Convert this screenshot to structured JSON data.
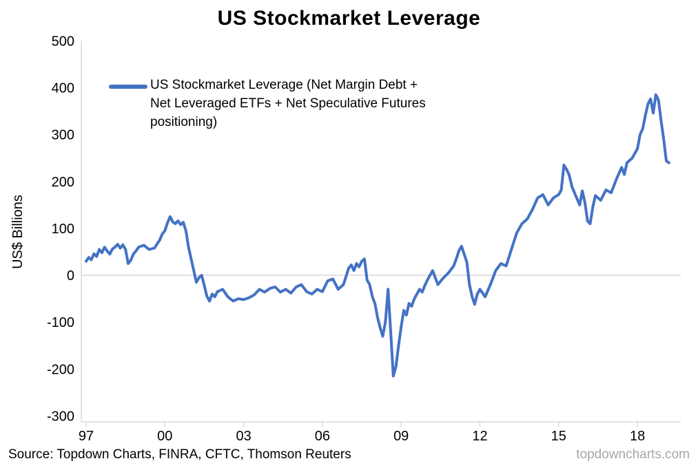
{
  "title": "US Stockmarket Leverage",
  "y_axis_title": "US$ Billions",
  "legend_label": "US Stockmarket Leverage (Net Margin Debt + Net Leveraged ETFs + Net Speculative Futures positioning)",
  "source": "Source: Topdown Charts, FINRA, CFTC, Thomson Reuters",
  "watermark": "topdowncharts.com",
  "colors": {
    "line": "#4472C4",
    "axis": "#d9d9d9",
    "watermark": "#a6a6a6"
  },
  "chart_data": {
    "type": "line",
    "title": "US Stockmarket Leverage",
    "xlabel": "",
    "ylabel": "US$ Billions",
    "series_name": "US Stockmarket Leverage (Net Margin Debt + Net Leveraged ETFs + Net Speculative Futures positioning)",
    "line_color": "#4472C4",
    "ylim": [
      -300,
      500
    ],
    "xlim": [
      1997,
      2019.4
    ],
    "grid": "zero-line-only",
    "legend_position": "upper-left-inside",
    "y_ticks": [
      500,
      400,
      300,
      200,
      100,
      0,
      -100,
      -200,
      -300
    ],
    "x_ticks": [
      {
        "year": 1997,
        "label": "97"
      },
      {
        "year": 2000,
        "label": "00"
      },
      {
        "year": 2003,
        "label": "03"
      },
      {
        "year": 2006,
        "label": "06"
      },
      {
        "year": 2009,
        "label": "09"
      },
      {
        "year": 2012,
        "label": "12"
      },
      {
        "year": 2015,
        "label": "15"
      },
      {
        "year": 2018,
        "label": "18"
      }
    ],
    "points": [
      [
        1997.0,
        30
      ],
      [
        1997.1,
        38
      ],
      [
        1997.2,
        33
      ],
      [
        1997.3,
        46
      ],
      [
        1997.4,
        40
      ],
      [
        1997.5,
        55
      ],
      [
        1997.6,
        48
      ],
      [
        1997.7,
        60
      ],
      [
        1997.8,
        52
      ],
      [
        1997.9,
        45
      ],
      [
        1998.0,
        56
      ],
      [
        1998.1,
        60
      ],
      [
        1998.2,
        66
      ],
      [
        1998.3,
        58
      ],
      [
        1998.4,
        65
      ],
      [
        1998.5,
        55
      ],
      [
        1998.6,
        25
      ],
      [
        1998.7,
        32
      ],
      [
        1998.8,
        45
      ],
      [
        1998.9,
        52
      ],
      [
        1999.0,
        60
      ],
      [
        1999.2,
        64
      ],
      [
        1999.4,
        55
      ],
      [
        1999.6,
        58
      ],
      [
        1999.8,
        75
      ],
      [
        1999.9,
        88
      ],
      [
        2000.0,
        95
      ],
      [
        2000.1,
        112
      ],
      [
        2000.2,
        125
      ],
      [
        2000.3,
        114
      ],
      [
        2000.4,
        110
      ],
      [
        2000.5,
        116
      ],
      [
        2000.6,
        108
      ],
      [
        2000.7,
        113
      ],
      [
        2000.8,
        95
      ],
      [
        2000.9,
        60
      ],
      [
        2001.0,
        35
      ],
      [
        2001.1,
        10
      ],
      [
        2001.2,
        -15
      ],
      [
        2001.3,
        -5
      ],
      [
        2001.4,
        0
      ],
      [
        2001.5,
        -22
      ],
      [
        2001.6,
        -45
      ],
      [
        2001.7,
        -55
      ],
      [
        2001.8,
        -40
      ],
      [
        2001.9,
        -46
      ],
      [
        2002.0,
        -35
      ],
      [
        2002.2,
        -30
      ],
      [
        2002.4,
        -46
      ],
      [
        2002.6,
        -55
      ],
      [
        2002.8,
        -50
      ],
      [
        2003.0,
        -52
      ],
      [
        2003.2,
        -48
      ],
      [
        2003.4,
        -42
      ],
      [
        2003.6,
        -30
      ],
      [
        2003.8,
        -36
      ],
      [
        2004.0,
        -28
      ],
      [
        2004.2,
        -25
      ],
      [
        2004.4,
        -36
      ],
      [
        2004.6,
        -30
      ],
      [
        2004.8,
        -38
      ],
      [
        2005.0,
        -25
      ],
      [
        2005.2,
        -20
      ],
      [
        2005.4,
        -35
      ],
      [
        2005.6,
        -40
      ],
      [
        2005.8,
        -30
      ],
      [
        2006.0,
        -35
      ],
      [
        2006.2,
        -12
      ],
      [
        2006.4,
        -8
      ],
      [
        2006.6,
        -30
      ],
      [
        2006.8,
        -20
      ],
      [
        2007.0,
        15
      ],
      [
        2007.1,
        22
      ],
      [
        2007.2,
        10
      ],
      [
        2007.3,
        25
      ],
      [
        2007.4,
        18
      ],
      [
        2007.5,
        30
      ],
      [
        2007.6,
        35
      ],
      [
        2007.7,
        -10
      ],
      [
        2007.8,
        -20
      ],
      [
        2007.9,
        -45
      ],
      [
        2008.0,
        -60
      ],
      [
        2008.1,
        -90
      ],
      [
        2008.2,
        -112
      ],
      [
        2008.3,
        -130
      ],
      [
        2008.4,
        -100
      ],
      [
        2008.5,
        -30
      ],
      [
        2008.6,
        -120
      ],
      [
        2008.7,
        -215
      ],
      [
        2008.8,
        -195
      ],
      [
        2008.9,
        -150
      ],
      [
        2009.0,
        -110
      ],
      [
        2009.1,
        -75
      ],
      [
        2009.2,
        -85
      ],
      [
        2009.3,
        -60
      ],
      [
        2009.4,
        -66
      ],
      [
        2009.5,
        -50
      ],
      [
        2009.6,
        -40
      ],
      [
        2009.7,
        -30
      ],
      [
        2009.8,
        -36
      ],
      [
        2009.9,
        -22
      ],
      [
        2010.0,
        -10
      ],
      [
        2010.2,
        10
      ],
      [
        2010.4,
        -20
      ],
      [
        2010.6,
        -6
      ],
      [
        2010.8,
        5
      ],
      [
        2011.0,
        20
      ],
      [
        2011.1,
        35
      ],
      [
        2011.2,
        52
      ],
      [
        2011.3,
        62
      ],
      [
        2011.4,
        45
      ],
      [
        2011.5,
        28
      ],
      [
        2011.6,
        -20
      ],
      [
        2011.7,
        -45
      ],
      [
        2011.8,
        -62
      ],
      [
        2011.9,
        -40
      ],
      [
        2012.0,
        -30
      ],
      [
        2012.2,
        -46
      ],
      [
        2012.4,
        -20
      ],
      [
        2012.6,
        10
      ],
      [
        2012.8,
        25
      ],
      [
        2013.0,
        20
      ],
      [
        2013.2,
        55
      ],
      [
        2013.4,
        90
      ],
      [
        2013.6,
        110
      ],
      [
        2013.8,
        120
      ],
      [
        2014.0,
        140
      ],
      [
        2014.2,
        165
      ],
      [
        2014.4,
        172
      ],
      [
        2014.6,
        150
      ],
      [
        2014.8,
        165
      ],
      [
        2015.0,
        172
      ],
      [
        2015.1,
        182
      ],
      [
        2015.2,
        235
      ],
      [
        2015.3,
        226
      ],
      [
        2015.4,
        214
      ],
      [
        2015.5,
        190
      ],
      [
        2015.6,
        176
      ],
      [
        2015.8,
        150
      ],
      [
        2015.9,
        180
      ],
      [
        2016.0,
        155
      ],
      [
        2016.1,
        116
      ],
      [
        2016.2,
        110
      ],
      [
        2016.3,
        145
      ],
      [
        2016.4,
        170
      ],
      [
        2016.6,
        160
      ],
      [
        2016.8,
        182
      ],
      [
        2017.0,
        176
      ],
      [
        2017.2,
        205
      ],
      [
        2017.4,
        230
      ],
      [
        2017.5,
        215
      ],
      [
        2017.6,
        240
      ],
      [
        2017.8,
        250
      ],
      [
        2018.0,
        270
      ],
      [
        2018.1,
        300
      ],
      [
        2018.2,
        312
      ],
      [
        2018.3,
        340
      ],
      [
        2018.4,
        365
      ],
      [
        2018.5,
        376
      ],
      [
        2018.6,
        346
      ],
      [
        2018.7,
        385
      ],
      [
        2018.8,
        374
      ],
      [
        2018.9,
        330
      ],
      [
        2019.0,
        290
      ],
      [
        2019.1,
        244
      ],
      [
        2019.2,
        240
      ]
    ]
  }
}
